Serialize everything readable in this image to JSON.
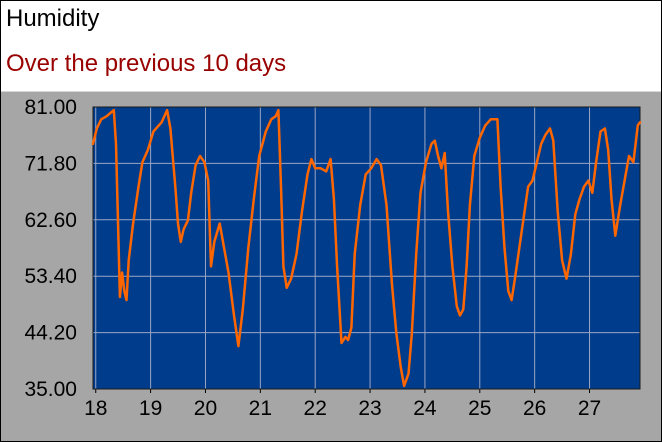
{
  "header": {
    "title": "Humidity",
    "subtitle": "Over the previous 10 days"
  },
  "colors": {
    "subtitle": "#990000",
    "plot_background": "#003c8c",
    "line": "#ff6600",
    "grid": "#9aa6c4",
    "panel": "#a6a6a6"
  },
  "chart_data": {
    "type": "line",
    "title": "Humidity",
    "subtitle": "Over the previous 10 days",
    "xlabel": "",
    "ylabel": "",
    "xlim": [
      17.95,
      27.92
    ],
    "ylim": [
      35.0,
      81.0
    ],
    "x_ticks": [
      18,
      19,
      20,
      21,
      22,
      23,
      24,
      25,
      26,
      27
    ],
    "x_tick_labels": [
      "18",
      "19",
      "20",
      "21",
      "22",
      "23",
      "24",
      "25",
      "26",
      "27"
    ],
    "y_ticks": [
      35.0,
      44.2,
      53.4,
      62.6,
      71.8,
      81.0
    ],
    "y_tick_labels": [
      "35.00",
      "44.20",
      "53.40",
      "62.60",
      "71.80",
      "81.00"
    ],
    "grid": true,
    "legend": "none",
    "series": [
      {
        "points": [
          [
            17.95,
            75.0
          ],
          [
            18.02,
            77.5
          ],
          [
            18.1,
            79.0
          ],
          [
            18.2,
            79.5
          ],
          [
            18.33,
            80.5
          ],
          [
            18.37,
            75.0
          ],
          [
            18.41,
            61.0
          ],
          [
            18.44,
            50.0
          ],
          [
            18.48,
            54.0
          ],
          [
            18.52,
            51.0
          ],
          [
            18.56,
            49.5
          ],
          [
            18.6,
            56.0
          ],
          [
            18.68,
            62.0
          ],
          [
            18.78,
            68.0
          ],
          [
            18.85,
            72.0
          ],
          [
            18.95,
            74.0
          ],
          [
            19.05,
            77.0
          ],
          [
            19.2,
            78.5
          ],
          [
            19.3,
            80.5
          ],
          [
            19.36,
            77.5
          ],
          [
            19.45,
            68.0
          ],
          [
            19.5,
            62.0
          ],
          [
            19.55,
            59.0
          ],
          [
            19.6,
            61.0
          ],
          [
            19.68,
            62.5
          ],
          [
            19.74,
            67.0
          ],
          [
            19.82,
            71.5
          ],
          [
            19.9,
            73.0
          ],
          [
            19.98,
            72.0
          ],
          [
            20.05,
            69.0
          ],
          [
            20.1,
            55.0
          ],
          [
            20.16,
            59.0
          ],
          [
            20.26,
            62.0
          ],
          [
            20.34,
            58.0
          ],
          [
            20.42,
            54.0
          ],
          [
            20.52,
            47.0
          ],
          [
            20.6,
            42.0
          ],
          [
            20.68,
            48.0
          ],
          [
            20.78,
            58.0
          ],
          [
            20.88,
            66.0
          ],
          [
            20.98,
            73.0
          ],
          [
            21.1,
            77.0
          ],
          [
            21.2,
            79.0
          ],
          [
            21.28,
            79.5
          ],
          [
            21.33,
            80.5
          ],
          [
            21.38,
            67.0
          ],
          [
            21.42,
            55.0
          ],
          [
            21.48,
            51.5
          ],
          [
            21.56,
            53.0
          ],
          [
            21.66,
            57.0
          ],
          [
            21.76,
            64.0
          ],
          [
            21.86,
            70.0
          ],
          [
            21.93,
            72.5
          ],
          [
            22.0,
            71.0
          ],
          [
            22.1,
            71.0
          ],
          [
            22.2,
            70.5
          ],
          [
            22.28,
            72.5
          ],
          [
            22.34,
            66.0
          ],
          [
            22.4,
            55.0
          ],
          [
            22.48,
            42.5
          ],
          [
            22.55,
            43.5
          ],
          [
            22.6,
            43.0
          ],
          [
            22.66,
            45.0
          ],
          [
            22.72,
            57.0
          ],
          [
            22.82,
            65.0
          ],
          [
            22.92,
            70.0
          ],
          [
            23.02,
            71.0
          ],
          [
            23.12,
            72.5
          ],
          [
            23.2,
            71.5
          ],
          [
            23.3,
            65.0
          ],
          [
            23.4,
            52.0
          ],
          [
            23.48,
            44.0
          ],
          [
            23.56,
            38.5
          ],
          [
            23.62,
            35.5
          ],
          [
            23.7,
            37.5
          ],
          [
            23.76,
            44.0
          ],
          [
            23.84,
            57.0
          ],
          [
            23.92,
            67.0
          ],
          [
            24.02,
            72.0
          ],
          [
            24.12,
            75.0
          ],
          [
            24.18,
            75.5
          ],
          [
            24.24,
            73.0
          ],
          [
            24.3,
            71.0
          ],
          [
            24.36,
            73.5
          ],
          [
            24.42,
            64.0
          ],
          [
            24.5,
            55.0
          ],
          [
            24.58,
            48.5
          ],
          [
            24.64,
            47.0
          ],
          [
            24.7,
            48.0
          ],
          [
            24.76,
            55.0
          ],
          [
            24.82,
            65.0
          ],
          [
            24.9,
            73.0
          ],
          [
            25.0,
            76.0
          ],
          [
            25.1,
            78.0
          ],
          [
            25.2,
            79.0
          ],
          [
            25.32,
            79.0
          ],
          [
            25.38,
            68.0
          ],
          [
            25.45,
            58.0
          ],
          [
            25.52,
            51.0
          ],
          [
            25.58,
            49.5
          ],
          [
            25.64,
            53.0
          ],
          [
            25.72,
            58.0
          ],
          [
            25.8,
            63.0
          ],
          [
            25.88,
            68.0
          ],
          [
            25.96,
            69.0
          ],
          [
            26.04,
            72.0
          ],
          [
            26.12,
            75.0
          ],
          [
            26.2,
            76.5
          ],
          [
            26.28,
            77.5
          ],
          [
            26.34,
            75.5
          ],
          [
            26.42,
            64.0
          ],
          [
            26.5,
            56.0
          ],
          [
            26.58,
            53.0
          ],
          [
            26.66,
            57.0
          ],
          [
            26.74,
            63.5
          ],
          [
            26.82,
            66.0
          ],
          [
            26.9,
            68.0
          ],
          [
            26.98,
            69.0
          ],
          [
            27.05,
            67.0
          ],
          [
            27.12,
            72.0
          ],
          [
            27.2,
            77.0
          ],
          [
            27.28,
            77.5
          ],
          [
            27.34,
            74.0
          ],
          [
            27.4,
            66.0
          ],
          [
            27.47,
            60.0
          ],
          [
            27.56,
            65.0
          ],
          [
            27.66,
            70.0
          ],
          [
            27.72,
            73.0
          ],
          [
            27.8,
            72.0
          ],
          [
            27.88,
            78.0
          ],
          [
            27.92,
            78.5
          ]
        ]
      }
    ]
  }
}
